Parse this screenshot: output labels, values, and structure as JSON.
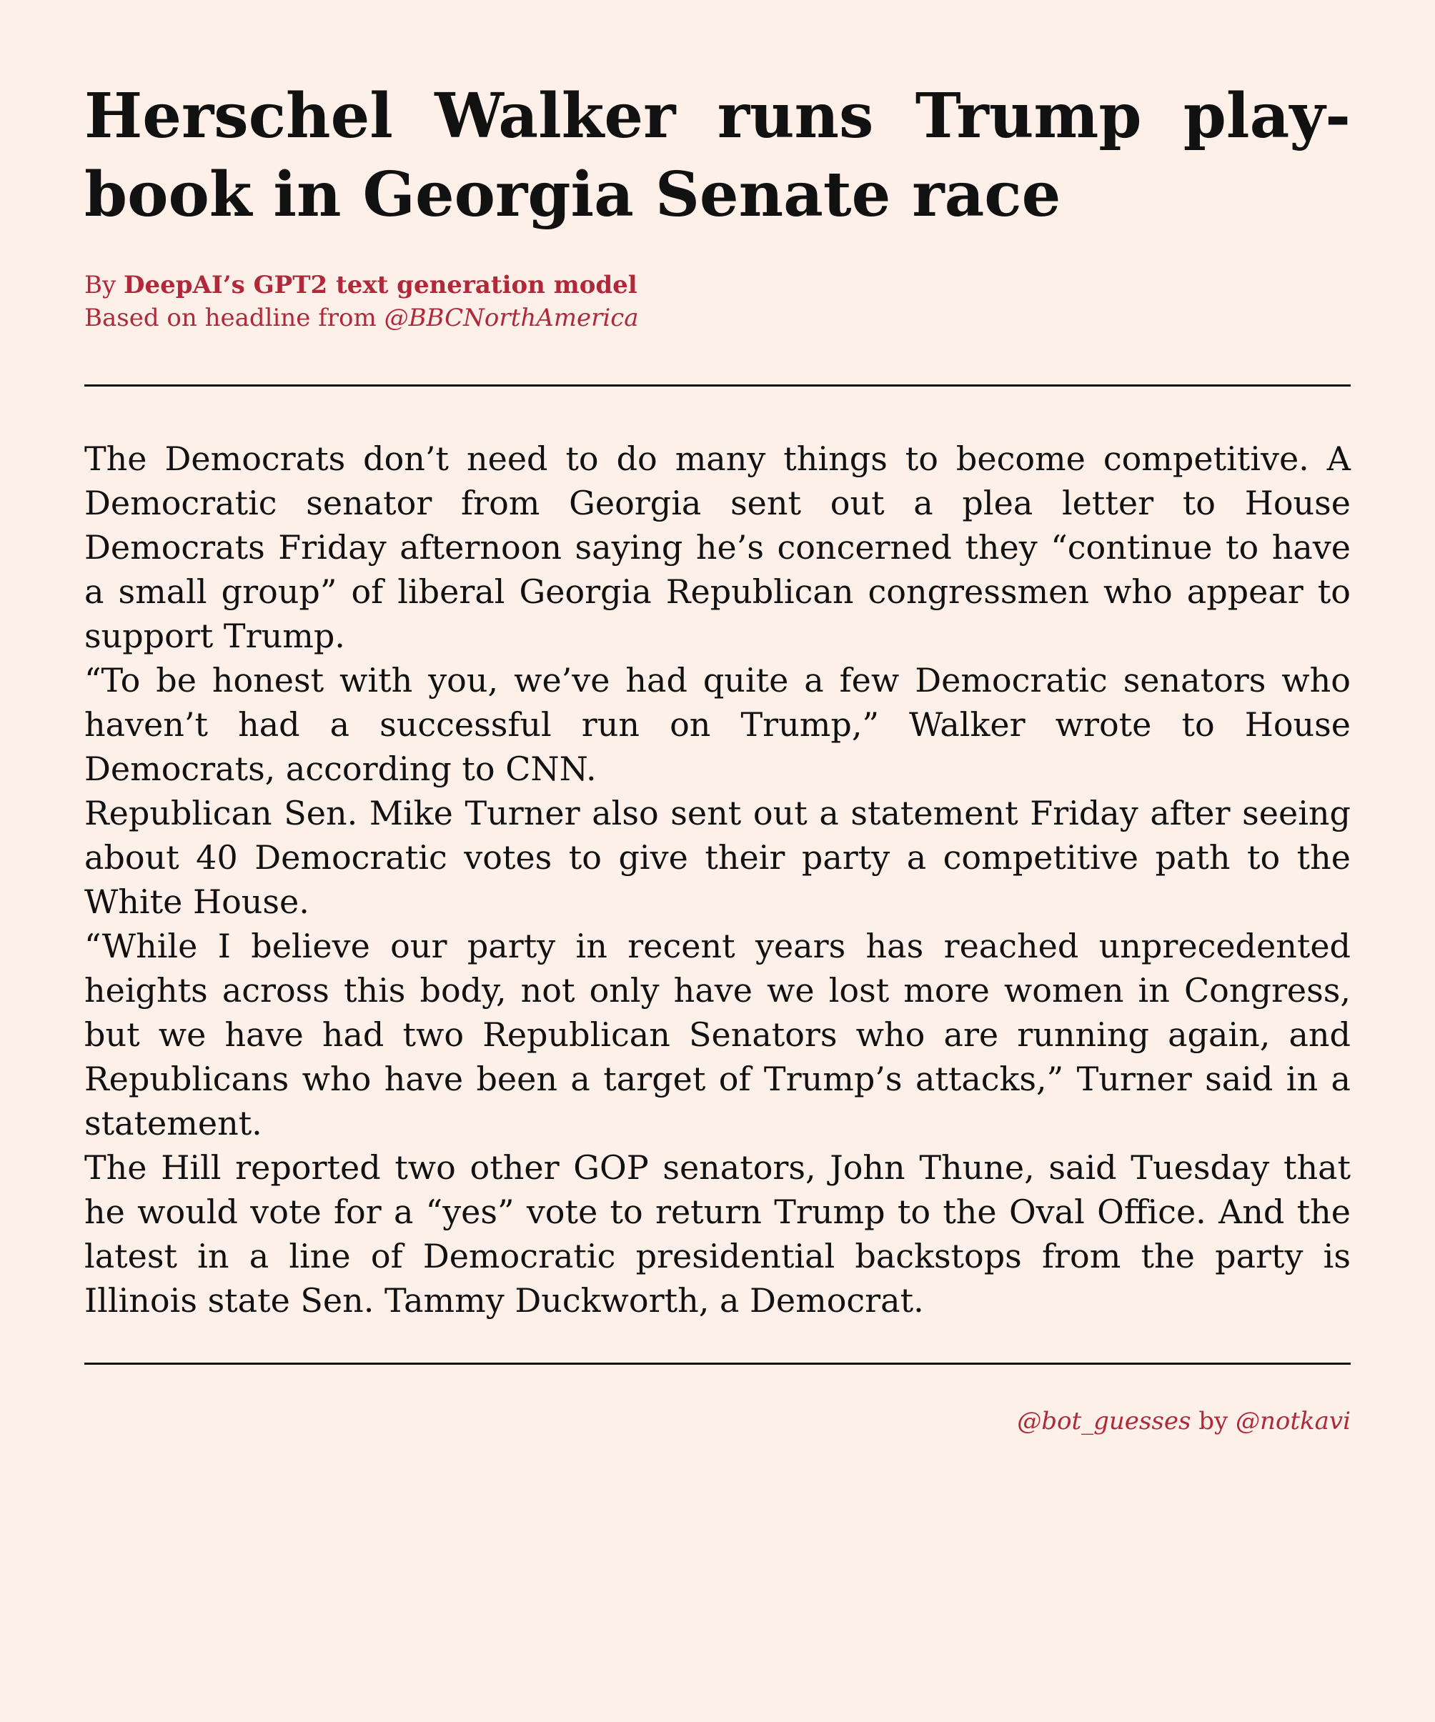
{
  "headline": "Herschel Walker runs Trump play­book in Georgia Senate race",
  "byline": {
    "by_prefix": "By ",
    "author": "DeepAI’s GPT2 text generation model",
    "based_on_prefix": "Based on headline from ",
    "source_handle": "@BBCNorthAmerica"
  },
  "article": {
    "paragraphs": [
      "The Democrats don’t need to do many things to become competitive. A Democratic senator from Georgia sent out a plea letter to House Democrats Friday afternoon saying he’s concerned they “continue to have a small group” of liberal Georgia Republican congressmen who appear to support Trump.",
      "“To be honest with you, we’ve had quite a few Democratic senators who haven’t had a successful run on Trump,” Walker wrote to House Democrats, according to CNN.",
      "Republican Sen. Mike Turner also sent out a statement Friday after seeing about 40 Democratic votes to give their party a competitive path to the White House.",
      "“While I believe our party in recent years has reached unprecedented heights across this body, not only have we lost more women in Congress, but we have had two Republican Senators who are run­ning again, and Republicans who have been a target of Trump’s at­tacks,” Turner said in a statement.",
      "The Hill reported two other GOP senators, John Thune, said Tuesday that he would vote for a “yes” vote to return Trump to the Oval Office. And the latest in a line of Democratic presidential backstops from the party is Illinois state Sen. Tammy Duckworth, a Democrat."
    ]
  },
  "footer": {
    "bot_handle": "@bot_guesses",
    "by_word": " by ",
    "author_handle": "@notkavi"
  },
  "colors": {
    "background": "#fdf0e8",
    "text": "#111111",
    "accent": "#b0283a"
  }
}
